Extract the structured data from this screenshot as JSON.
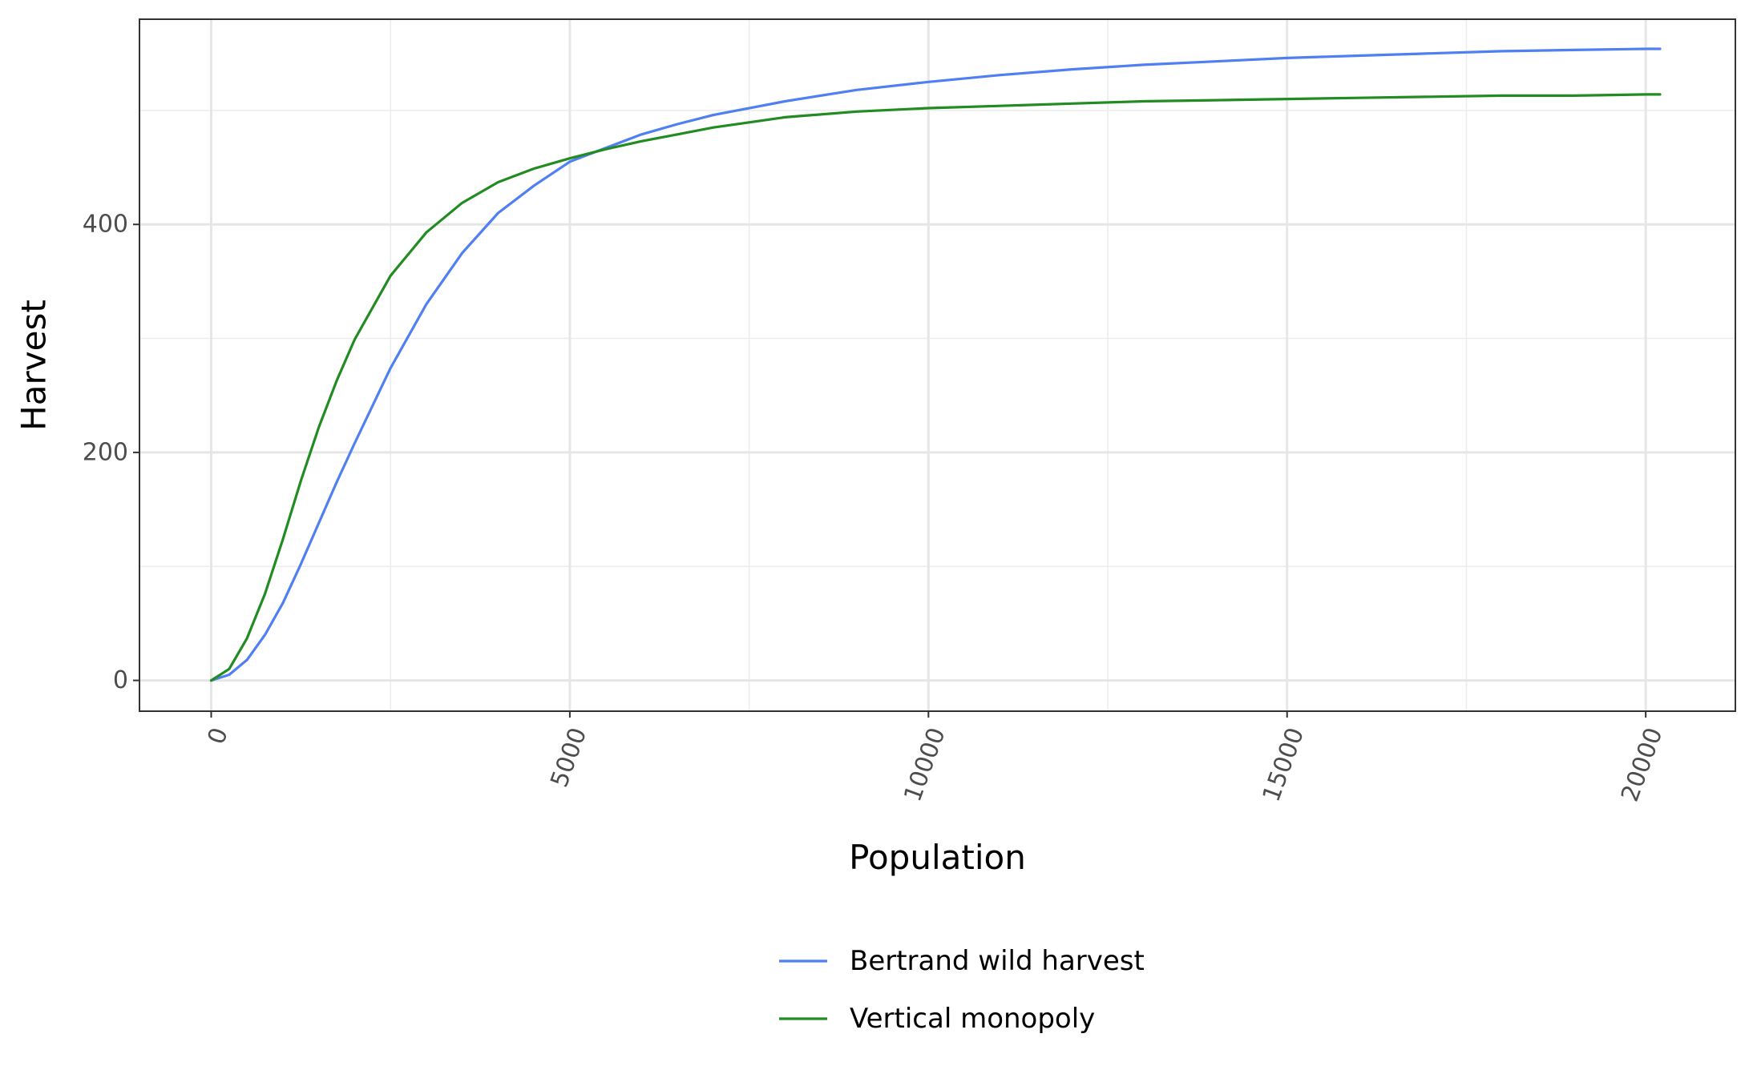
{
  "chart_data": {
    "type": "line",
    "title": "",
    "xlabel": "Population",
    "ylabel": "Harvest",
    "xlim": [
      -1000,
      21250
    ],
    "ylim": [
      -27,
      580
    ],
    "x_ticks": [
      0,
      5000,
      10000,
      15000,
      20000
    ],
    "x_tick_labels": [
      "0",
      "5000",
      "10000",
      "15000",
      "20000"
    ],
    "y_ticks": [
      0,
      200,
      400
    ],
    "y_tick_labels": [
      "0",
      "200",
      "400"
    ],
    "x_minor_ticks": [
      2500,
      7500,
      12500,
      17500
    ],
    "y_minor_ticks": [
      100,
      300,
      500
    ],
    "grid": true,
    "legend_position": "bottom",
    "series": [
      {
        "name": "Bertrand wild harvest",
        "color": "#4f7ff2",
        "x": [
          0,
          250,
          500,
          750,
          1000,
          1250,
          1500,
          1750,
          2000,
          2500,
          3000,
          3500,
          4000,
          4500,
          5000,
          5500,
          6000,
          6500,
          7000,
          8000,
          9000,
          10000,
          11000,
          12000,
          13000,
          14000,
          15000,
          16000,
          17000,
          18000,
          19000,
          20000,
          20200
        ],
        "y": [
          0,
          5,
          18,
          40,
          68,
          102,
          138,
          174,
          208,
          274,
          330,
          375,
          410,
          434,
          455,
          467,
          479,
          488,
          496,
          508,
          518,
          525,
          531,
          536,
          540,
          543,
          546,
          548,
          550,
          552,
          553,
          554,
          554
        ]
      },
      {
        "name": "Vertical monopoly",
        "color": "#228b22",
        "x": [
          0,
          250,
          500,
          750,
          1000,
          1250,
          1500,
          1750,
          2000,
          2500,
          3000,
          3500,
          4000,
          4500,
          5000,
          5500,
          6000,
          6500,
          7000,
          8000,
          9000,
          10000,
          11000,
          12000,
          13000,
          14000,
          15000,
          16000,
          17000,
          18000,
          19000,
          20000,
          20200
        ],
        "y": [
          0,
          10,
          37,
          76,
          124,
          175,
          222,
          263,
          299,
          355,
          393,
          419,
          437,
          449,
          458,
          466,
          473,
          479,
          485,
          494,
          499,
          502,
          504,
          506,
          508,
          509,
          510,
          511,
          512,
          513,
          513,
          514,
          514
        ]
      }
    ]
  }
}
